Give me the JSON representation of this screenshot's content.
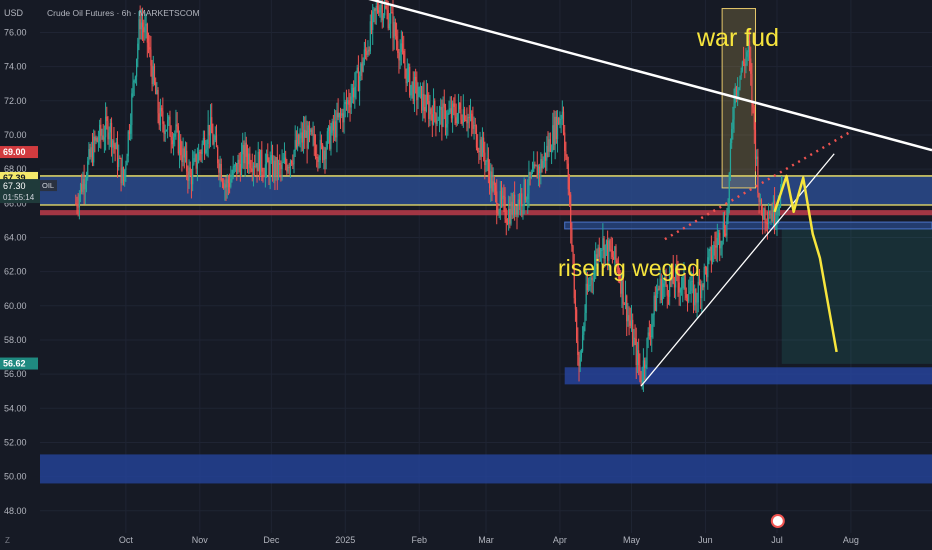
{
  "header": {
    "currency": "USD",
    "title": "Crude Oil Futures · 6h · MARKETSCOM"
  },
  "price_badges": {
    "level_red": "69.00",
    "level_blue": "67.39",
    "current": "67.30",
    "current_tag": "OIL",
    "countdown": "01:55:14",
    "level_green": "56.62"
  },
  "annotations": {
    "war_note": "war fud",
    "wedge_note": "riseing weged"
  },
  "bottom": {
    "corner": "Z"
  },
  "colors": {
    "background": "#161a25",
    "up_candle": "#26a69a",
    "down_candle": "#ef5350",
    "zone_blue": "#2a4b8d",
    "zone_yellow": "#f5e96b",
    "annotation_yellow": "#f7e53d"
  },
  "chart_data": {
    "type": "candlestick",
    "title": "Crude Oil Futures · 6h · MARKETSCOM",
    "x_ticks": [
      "Oct",
      "Nov",
      "Dec",
      "2025",
      "Feb",
      "Mar",
      "Apr",
      "May",
      "Jun",
      "Jul",
      "Aug"
    ],
    "y_ticks": [
      76,
      74,
      72,
      70,
      68,
      66,
      64,
      62,
      60,
      58,
      56,
      54,
      52,
      50,
      48
    ],
    "ylim": [
      46.7,
      77.9
    ],
    "series": [
      {
        "name": "price_path",
        "points": [
          [
            "2024-09-10",
            66.0
          ],
          [
            "2024-09-18",
            69.5
          ],
          [
            "2024-09-24",
            70.6
          ],
          [
            "2024-09-30",
            67.3
          ],
          [
            "2024-10-07",
            76.8
          ],
          [
            "2024-10-10",
            75.5
          ],
          [
            "2024-10-15",
            71.0
          ],
          [
            "2024-10-22",
            70.0
          ],
          [
            "2024-10-28",
            67.5
          ],
          [
            "2024-11-05",
            70.5
          ],
          [
            "2024-11-12",
            67.0
          ],
          [
            "2024-11-20",
            68.9
          ],
          [
            "2024-11-28",
            68.2
          ],
          [
            "2024-12-05",
            67.9
          ],
          [
            "2024-12-15",
            70.0
          ],
          [
            "2024-12-22",
            69.0
          ],
          [
            "2024-12-30",
            71.0
          ],
          [
            "2025-01-07",
            73.5
          ],
          [
            "2025-01-15",
            77.8
          ],
          [
            "2025-01-20",
            76.8
          ],
          [
            "2025-01-28",
            73.0
          ],
          [
            "2025-02-05",
            71.5
          ],
          [
            "2025-02-12",
            71.0
          ],
          [
            "2025-02-20",
            71.5
          ],
          [
            "2025-02-28",
            69.0
          ],
          [
            "2025-03-05",
            66.3
          ],
          [
            "2025-03-10",
            65.4
          ],
          [
            "2025-03-18",
            66.8
          ],
          [
            "2025-03-25",
            68.5
          ],
          [
            "2025-04-02",
            71.5
          ],
          [
            "2025-04-05",
            66.0
          ],
          [
            "2025-04-09",
            56.0
          ],
          [
            "2025-04-12",
            60.5
          ],
          [
            "2025-04-18",
            63.8
          ],
          [
            "2025-04-25",
            62.5
          ],
          [
            "2025-05-05",
            55.8
          ],
          [
            "2025-05-12",
            61.0
          ],
          [
            "2025-05-20",
            61.5
          ],
          [
            "2025-05-28",
            60.5
          ],
          [
            "2025-06-05",
            63.5
          ],
          [
            "2025-06-10",
            65.0
          ],
          [
            "2025-06-13",
            72.5
          ],
          [
            "2025-06-19",
            75.0
          ],
          [
            "2025-06-24",
            65.5
          ],
          [
            "2025-06-30",
            65.5
          ],
          [
            "2025-07-03",
            66.8
          ]
        ]
      },
      {
        "name": "projection",
        "points": [
          [
            "2025-06-30",
            65.5
          ],
          [
            "2025-07-05",
            67.6
          ],
          [
            "2025-07-08",
            65.5
          ],
          [
            "2025-07-12",
            67.5
          ],
          [
            "2025-07-16",
            64.2
          ],
          [
            "2025-07-19",
            62.8
          ],
          [
            "2025-07-26",
            57.3
          ]
        ]
      }
    ],
    "trendlines": [
      {
        "name": "resistance",
        "from": [
          "2025-01-10",
          78.0
        ],
        "to": [
          "2025-08-30",
          69.3
        ]
      },
      {
        "name": "wedge_support",
        "from": [
          "2025-05-05",
          55.3
        ],
        "to": [
          "2025-07-25",
          68.9
        ]
      },
      {
        "name": "wedge_top",
        "from": [
          "2025-05-15",
          63.9
        ],
        "to": [
          "2025-08-01",
          70.2
        ]
      }
    ],
    "zones": [
      {
        "name": "range_band",
        "y": [
          65.9,
          67.6
        ]
      },
      {
        "name": "support_strip",
        "y": [
          64.5,
          64.9
        ]
      },
      {
        "name": "may_low_zone",
        "y": [
          55.4,
          56.4
        ]
      },
      {
        "name": "deep_support",
        "y": [
          49.6,
          51.3
        ]
      },
      {
        "name": "war_box",
        "y": [
          66.9,
          77.4
        ]
      },
      {
        "name": "target_box",
        "y": [
          56.6,
          69.0
        ]
      }
    ]
  }
}
